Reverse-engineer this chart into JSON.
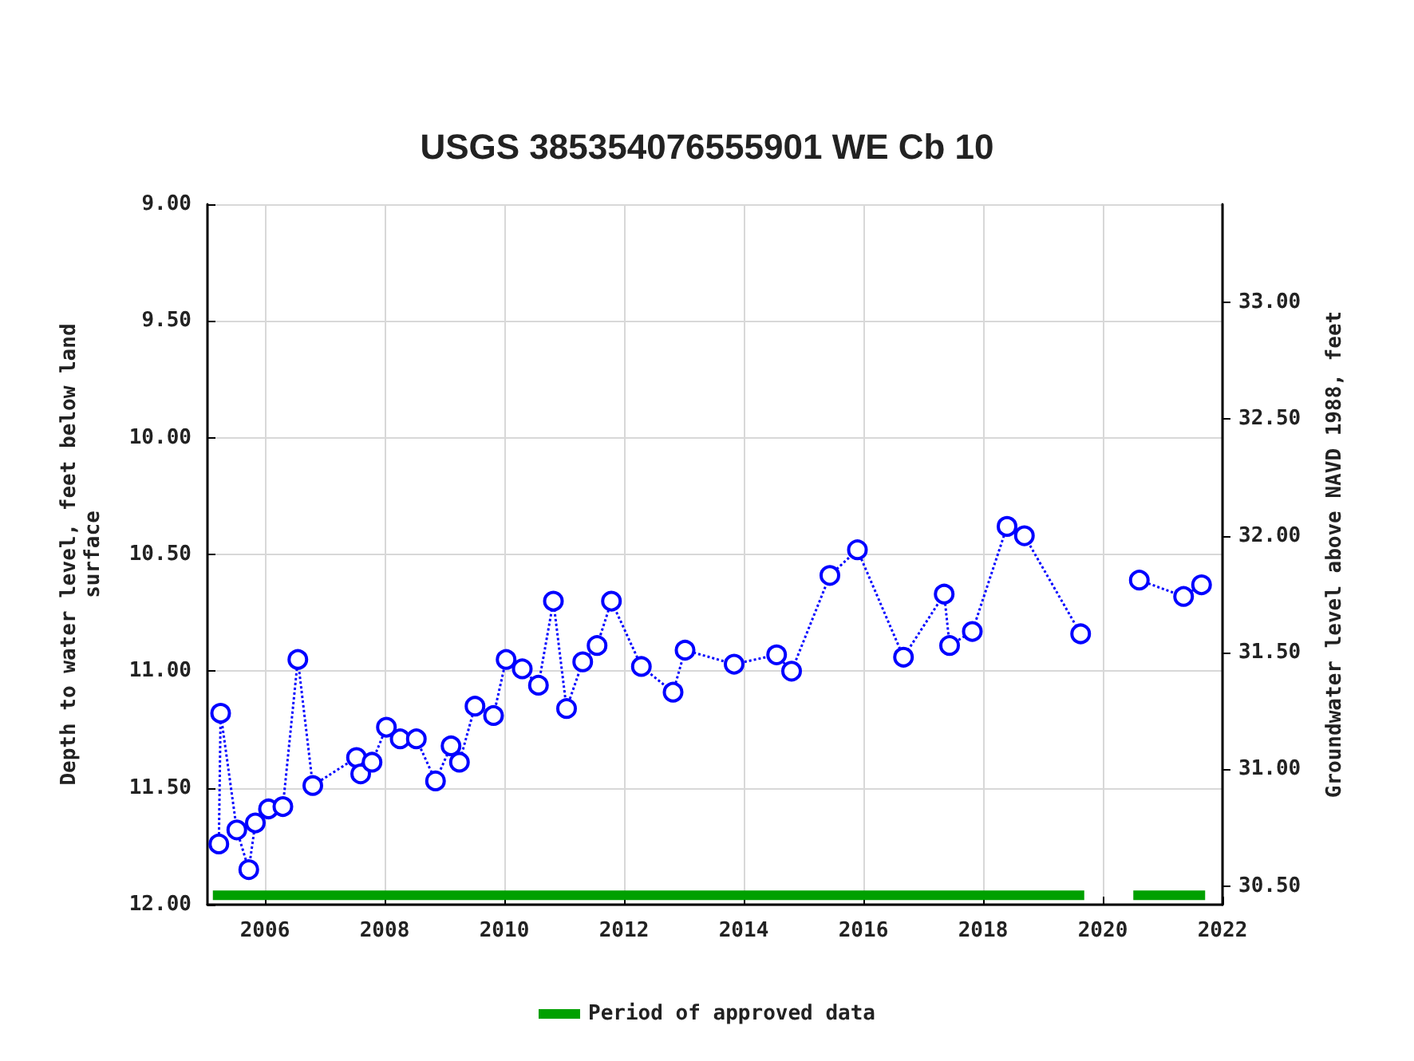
{
  "chart_data": {
    "type": "line",
    "title": "USGS 385354076555901 WE Cb 10",
    "ylabel": "Depth to water level, feet below land\nsurface",
    "y2label": "Groundwater level above NAVD 1988, feet",
    "xlim": [
      2005.04,
      2022
    ],
    "xticks": [
      2006,
      2008,
      2010,
      2012,
      2014,
      2016,
      2018,
      2020,
      2022
    ],
    "ylim": [
      12,
      9
    ],
    "yticks": [
      {
        "value": 9,
        "label": "9.00"
      },
      {
        "value": 9.5,
        "label": "9.50"
      },
      {
        "value": 10,
        "label": "10.00"
      },
      {
        "value": 10.5,
        "label": "10.50"
      },
      {
        "value": 11,
        "label": "11.00"
      },
      {
        "value": 11.5,
        "label": "11.50"
      },
      {
        "value": 12,
        "label": "12.00"
      }
    ],
    "y2lim": [
      30.42,
      33.42
    ],
    "y2ticks": [
      {
        "value": 30.5,
        "label": "30.50"
      },
      {
        "value": 31,
        "label": "31.00"
      },
      {
        "value": 31.5,
        "label": "31.50"
      },
      {
        "value": 32,
        "label": "32.00"
      },
      {
        "value": 32.5,
        "label": "32.50"
      },
      {
        "value": 33,
        "label": "33.00"
      }
    ],
    "grid": true,
    "legend": "bottom",
    "series": [
      {
        "color": "#0000ff",
        "marker": "circle",
        "line_style": "dotted",
        "x": [
          2005.23,
          2005.26,
          2005.53,
          2005.73,
          2005.84,
          2006.06,
          2006.3,
          2006.55,
          2006.8,
          2007.53,
          2007.6,
          2007.79,
          2008.03,
          2008.26,
          2008.53,
          2008.85,
          2009.11,
          2009.25,
          2009.51,
          2009.82,
          2010.03,
          2010.3,
          2010.57,
          2010.82,
          2011.04,
          2011.31,
          2011.55,
          2011.79,
          2012.29,
          2012.82,
          2013.02,
          2013.84,
          2014.55,
          2014.8,
          2015.44,
          2015.9,
          2016.67,
          2017.35,
          2017.44,
          2017.82,
          2018.4,
          2018.69,
          2019.63,
          2020.1,
          2020.61,
          2021.35,
          2021.65
        ],
        "values": [
          11.74,
          11.18,
          11.68,
          11.85,
          11.65,
          11.59,
          11.58,
          10.95,
          11.49,
          11.37,
          11.44,
          11.39,
          11.24,
          11.29,
          11.29,
          11.47,
          11.32,
          11.39,
          11.15,
          11.19,
          10.95,
          10.99,
          11.06,
          10.7,
          11.16,
          10.96,
          10.89,
          10.7,
          10.98,
          11.09,
          10.91,
          10.97,
          10.93,
          11.0,
          10.59,
          10.48,
          10.94,
          10.67,
          10.89,
          10.83,
          10.38,
          10.42,
          10.84,
          null,
          10.61,
          10.68,
          10.63
        ]
      },
      {
        "name": "Period of approved data",
        "color": "#00a000",
        "marker": "none",
        "line_style": "solid",
        "x": [
          2005.13,
          2019.69,
          2020.1,
          2020.51,
          2021.71
        ],
        "values": [
          11.96,
          11.96,
          null,
          11.96,
          11.96
        ]
      }
    ]
  }
}
